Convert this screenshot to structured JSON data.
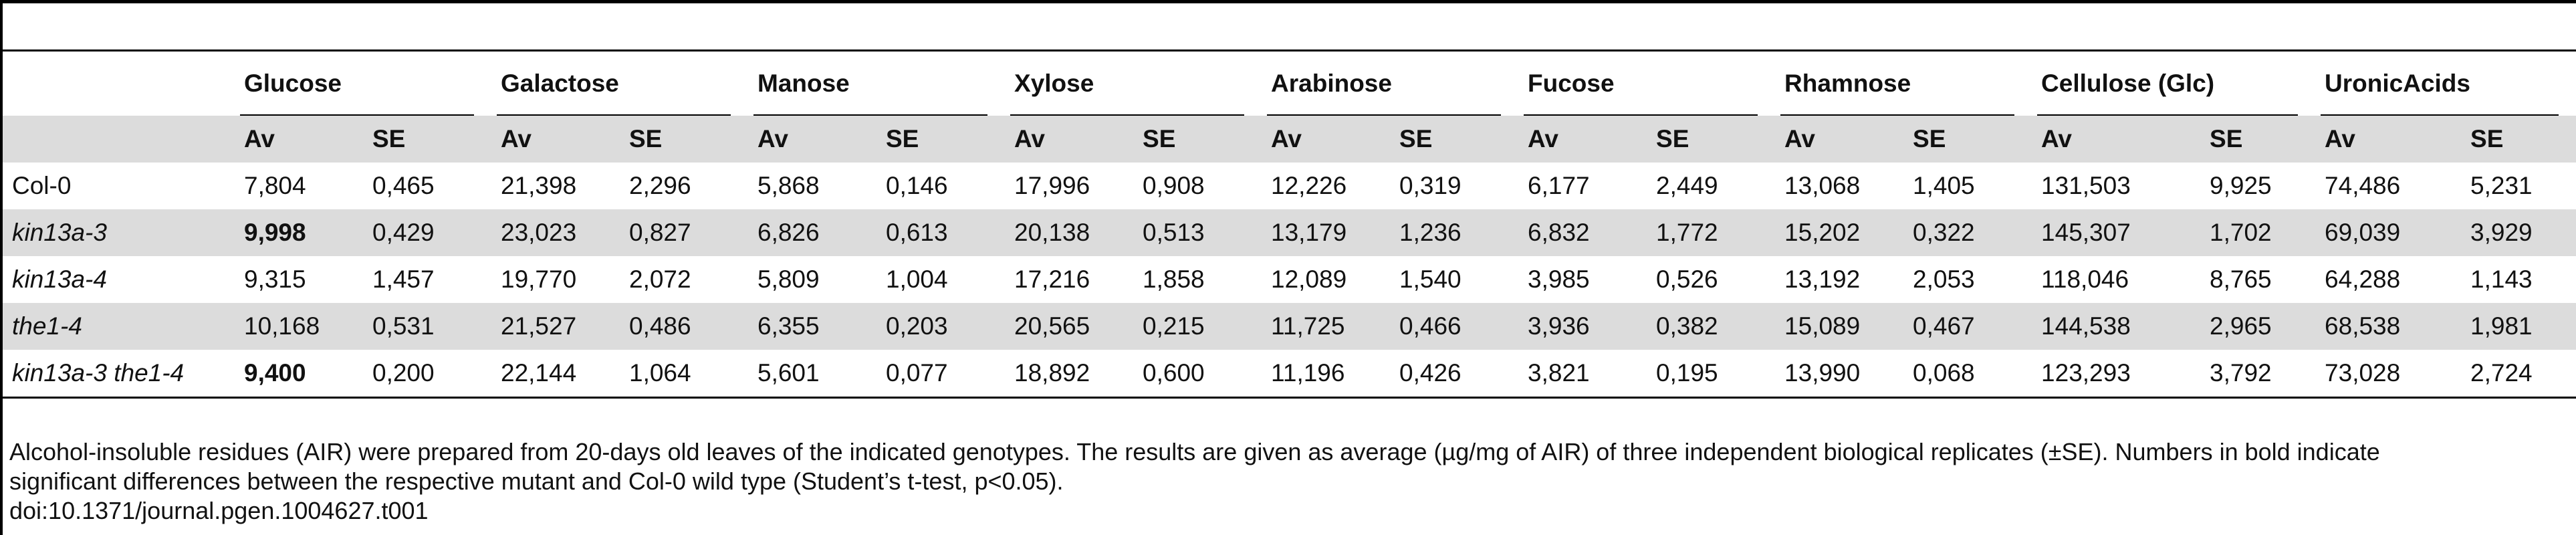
{
  "table": {
    "groups": [
      "Glucose",
      "Galactose",
      "Manose",
      "Xylose",
      "Arabinose",
      "Fucose",
      "Rhamnose",
      "Cellulose (Glc)",
      "UronicAcids"
    ],
    "sub_headers": [
      "Av",
      "SE"
    ],
    "rows": [
      {
        "label": "Col-0",
        "label_italic": false,
        "shaded": false,
        "values": [
          "7,804",
          "0,465",
          "21,398",
          "2,296",
          "5,868",
          "0,146",
          "17,996",
          "0,908",
          "12,226",
          "0,319",
          "6,177",
          "2,449",
          "13,068",
          "1,405",
          "131,503",
          "9,925",
          "74,486",
          "5,231"
        ],
        "bold": []
      },
      {
        "label": "kin13a-3",
        "label_italic": true,
        "shaded": true,
        "values": [
          "9,998",
          "0,429",
          "23,023",
          "0,827",
          "6,826",
          "0,613",
          "20,138",
          "0,513",
          "13,179",
          "1,236",
          "6,832",
          "1,772",
          "15,202",
          "0,322",
          "145,307",
          "1,702",
          "69,039",
          "3,929"
        ],
        "bold": [
          0
        ]
      },
      {
        "label": "kin13a-4",
        "label_italic": true,
        "shaded": false,
        "values": [
          "9,315",
          "1,457",
          "19,770",
          "2,072",
          "5,809",
          "1,004",
          "17,216",
          "1,858",
          "12,089",
          "1,540",
          "3,985",
          "0,526",
          "13,192",
          "2,053",
          "118,046",
          "8,765",
          "64,288",
          "1,143"
        ],
        "bold": []
      },
      {
        "label": "the1-4",
        "label_italic": true,
        "shaded": true,
        "values": [
          "10,168",
          "0,531",
          "21,527",
          "0,486",
          "6,355",
          "0,203",
          "20,565",
          "0,215",
          "11,725",
          "0,466",
          "3,936",
          "0,382",
          "15,089",
          "0,467",
          "144,538",
          "2,965",
          "68,538",
          "1,981"
        ],
        "bold": []
      },
      {
        "label": "kin13a-3 the1-4",
        "label_italic": true,
        "shaded": false,
        "values": [
          "9,400",
          "0,200",
          "22,144",
          "1,064",
          "5,601",
          "0,077",
          "18,892",
          "0,600",
          "11,196",
          "0,426",
          "3,821",
          "0,195",
          "13,990",
          "0,068",
          "123,293",
          "3,792",
          "73,028",
          "2,724"
        ],
        "bold": [
          0
        ]
      }
    ]
  },
  "footnote": {
    "line1": "Alcohol-insoluble residues (AIR) were prepared from 20-days old leaves of the indicated genotypes. The results are given as average (µg/mg of AIR) of three independent biological replicates (±SE). Numbers in bold indicate",
    "line2": "significant differences between the respective mutant and Col-0 wild type (Student’s t-test, p<0.05).",
    "doi": "doi:10.1371/journal.pgen.1004627.t001"
  }
}
